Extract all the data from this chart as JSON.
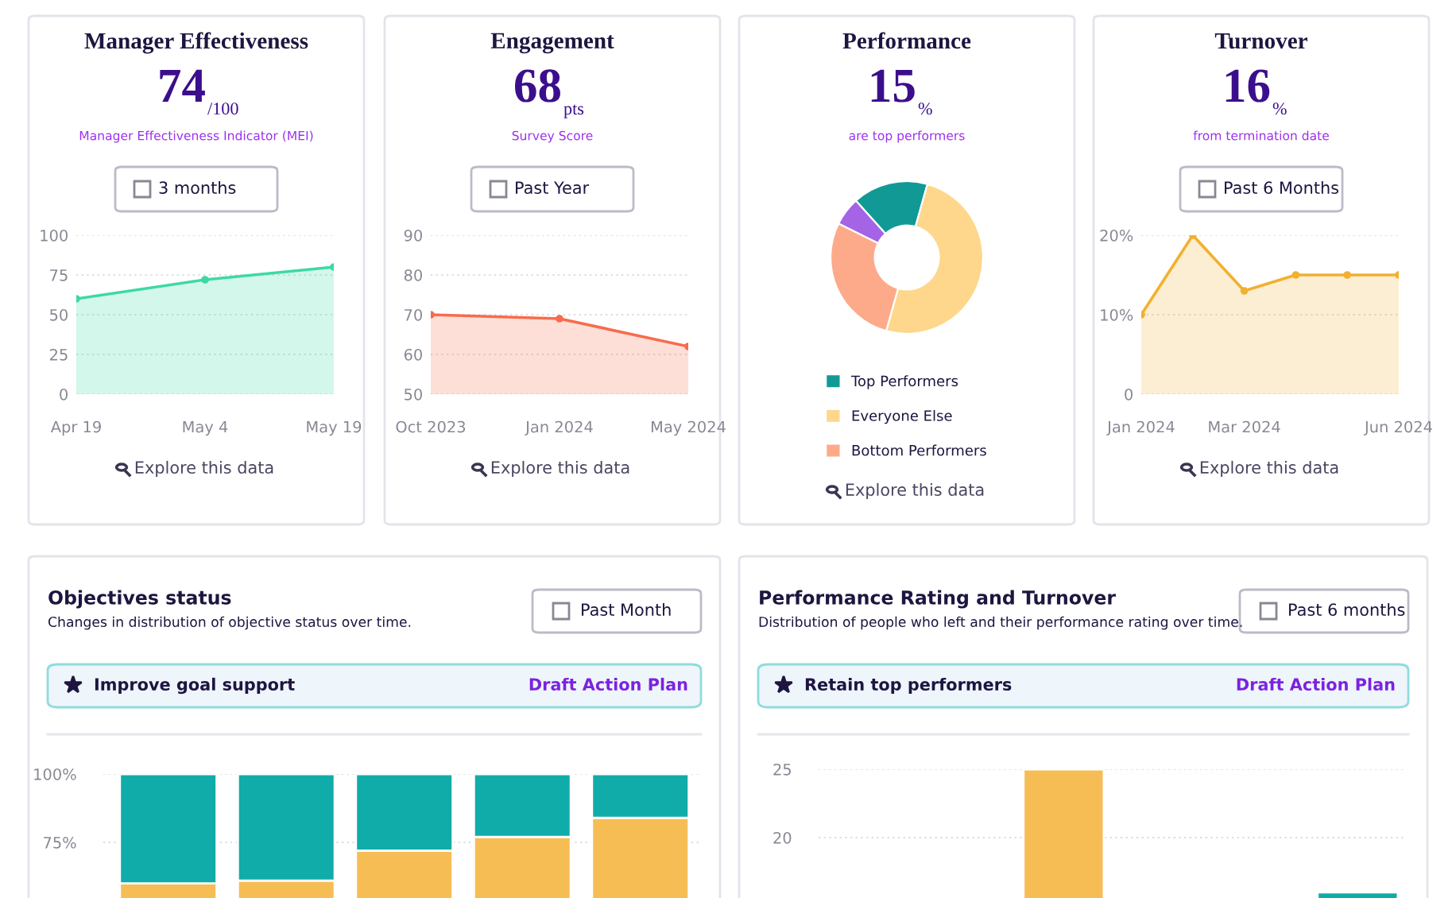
{
  "chart_data": [
    {
      "type": "area",
      "title": "Manager Effectiveness",
      "annotations": [
        "74",
        "/100",
        "Manager Effectiveness Indicator (MEI)",
        "3 months",
        "Explore this data"
      ],
      "categories": [
        "Apr 19",
        "May 4",
        "May 19"
      ],
      "series": [
        {
          "color": "#3dd9a4",
          "values": [
            60,
            72,
            80
          ]
        }
      ],
      "ylim": [
        0,
        100
      ],
      "yticks": [
        0,
        25,
        50,
        75,
        100
      ],
      "grid": "y",
      "marker": "circle"
    },
    {
      "type": "area",
      "title": "Engagement",
      "annotations": [
        "68",
        "pts",
        "Survey Score",
        "Past Year",
        "Explore this data"
      ],
      "categories": [
        "Oct 2023",
        "Jan 2024",
        "May 2024"
      ],
      "series": [
        {
          "color": "#f76c4c",
          "values": [
            70,
            69,
            62
          ]
        }
      ],
      "ylim": [
        50,
        90
      ],
      "yticks": [
        50,
        60,
        70,
        80,
        90
      ],
      "grid": "y",
      "marker": "circle"
    },
    {
      "type": "donut",
      "title": "Performance",
      "annotations": [
        "15",
        "%",
        "are top performers",
        "Explore this data"
      ],
      "categories": [
        "Top Performers",
        "Everyone Else",
        "Bottom Performers",
        null
      ],
      "values": [
        16,
        50,
        28,
        6
      ],
      "colors": [
        "#119a95",
        "#fed78c",
        "#fdaa8a",
        "#a563e6"
      ],
      "legend": "bottom"
    },
    {
      "type": "area",
      "title": "Turnover",
      "annotations": [
        "16",
        "%",
        "from termination date",
        "Past 6 Months",
        "Explore this data"
      ],
      "categories": [
        "Jan 2024",
        null,
        "Mar 2024",
        null,
        null,
        "Jun 2024"
      ],
      "series": [
        {
          "color": "#f2b031",
          "values": [
            10,
            20,
            13,
            15,
            15,
            15
          ]
        }
      ],
      "ylim": [
        0,
        20
      ],
      "yticks": [
        0,
        {
          "value": 10,
          "label": "10%"
        },
        {
          "value": 20,
          "label": "20%"
        }
      ],
      "grid": "y",
      "marker": "circle"
    },
    {
      "type": "bar",
      "title": "Objectives status",
      "subtitle": "Changes in distribution of objective status over time.",
      "annotations": [
        "Past Month",
        "Improve goal support",
        "Draft Action Plan"
      ],
      "categories": [
        null,
        null,
        null,
        null,
        null
      ],
      "stacked": true,
      "series": [
        {
          "color": "#f6bd55",
          "values": [
            60,
            61,
            72,
            77,
            84
          ]
        },
        {
          "color": "#10aca9",
          "values": [
            40,
            39,
            28,
            23,
            16
          ]
        }
      ],
      "ylim": [
        0,
        100
      ],
      "yticks": [
        {
          "value": 75,
          "label": "75%"
        },
        {
          "value": 100,
          "label": "100%"
        }
      ],
      "grid": "y"
    },
    {
      "type": "bar",
      "title": "Performance Rating and Turnover",
      "subtitle": "Distribution of people who left and their performance rating over time.",
      "annotations": [
        "Past 6 months",
        "Retain top performers",
        "Draft Action Plan"
      ],
      "categories": [
        null,
        null,
        null,
        null,
        null,
        null
      ],
      "series": [
        {
          "color": "#f6bd55",
          "values": [
            null,
            null,
            25,
            null,
            null,
            null
          ]
        },
        {
          "color": "#10aca9",
          "values": [
            null,
            null,
            null,
            null,
            null,
            16
          ]
        }
      ],
      "ylim": [
        0,
        25
      ],
      "yticks": [
        20,
        25
      ],
      "grid": "y"
    }
  ]
}
